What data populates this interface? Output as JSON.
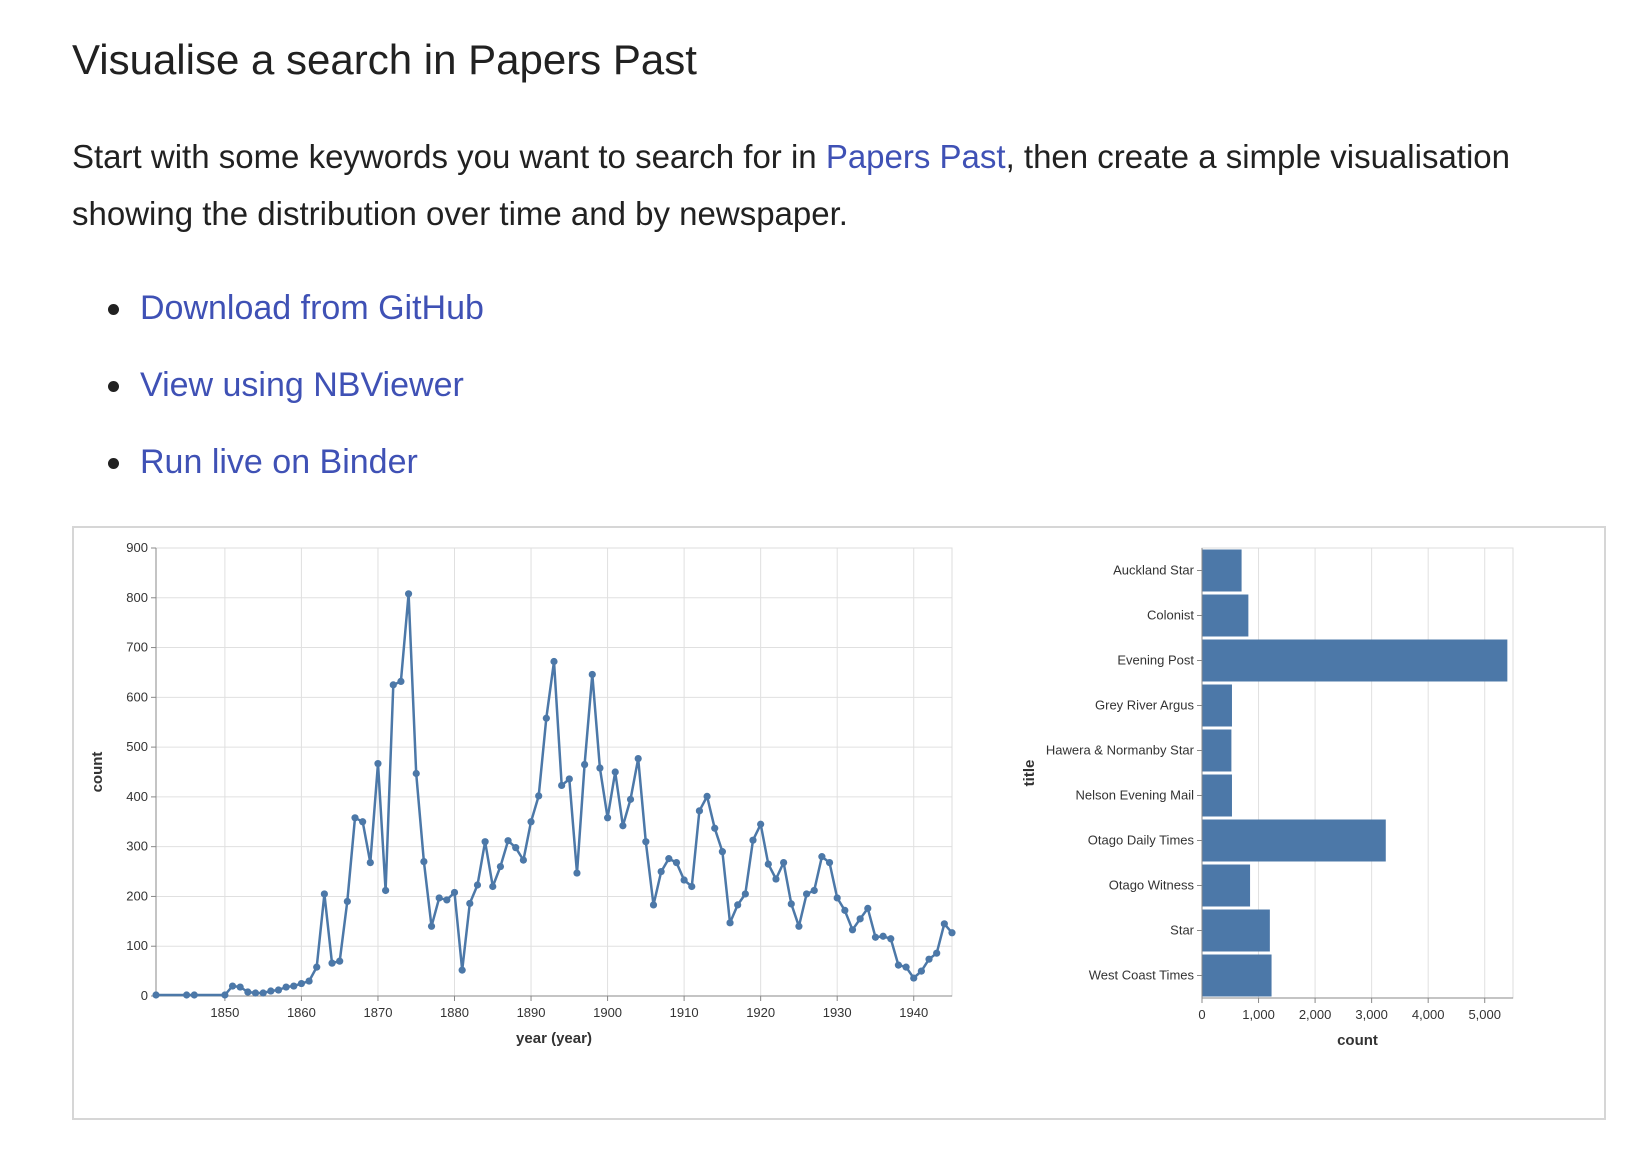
{
  "title": "Visualise a search in Papers Past",
  "intro": {
    "before": "Start with some keywords you want to search for in ",
    "link_text": "Papers Past",
    "after": ", then create a simple visualisation showing the distribution over time and by newspaper."
  },
  "links": [
    {
      "label": "Download from GitHub"
    },
    {
      "label": "View using NBViewer"
    },
    {
      "label": "Run live on Binder"
    }
  ],
  "colors": {
    "link": "#3f51b5",
    "mark": "#4c78a8",
    "grid": "#e0e0e0",
    "text": "#212121"
  },
  "chart_data": [
    {
      "type": "line",
      "xlabel": "year (year)",
      "ylabel": "count",
      "xlim": [
        1841,
        1945
      ],
      "ylim": [
        0,
        900
      ],
      "x_ticks": [
        1850,
        1860,
        1870,
        1880,
        1890,
        1900,
        1910,
        1920,
        1930,
        1940
      ],
      "y_ticks": [
        0,
        100,
        200,
        300,
        400,
        500,
        600,
        700,
        800,
        900
      ],
      "grid": true,
      "points": [
        [
          1841,
          2
        ],
        [
          1845,
          2
        ],
        [
          1846,
          2
        ],
        [
          1850,
          2
        ],
        [
          1851,
          20
        ],
        [
          1852,
          18
        ],
        [
          1853,
          8
        ],
        [
          1854,
          6
        ],
        [
          1855,
          6
        ],
        [
          1856,
          10
        ],
        [
          1857,
          12
        ],
        [
          1858,
          18
        ],
        [
          1859,
          20
        ],
        [
          1860,
          25
        ],
        [
          1861,
          30
        ],
        [
          1862,
          58
        ],
        [
          1863,
          205
        ],
        [
          1864,
          66
        ],
        [
          1865,
          70
        ],
        [
          1866,
          190
        ],
        [
          1867,
          358
        ],
        [
          1868,
          350
        ],
        [
          1869,
          268
        ],
        [
          1870,
          467
        ],
        [
          1871,
          212
        ],
        [
          1872,
          625
        ],
        [
          1873,
          632
        ],
        [
          1874,
          808
        ],
        [
          1875,
          447
        ],
        [
          1876,
          270
        ],
        [
          1877,
          140
        ],
        [
          1878,
          197
        ],
        [
          1879,
          193
        ],
        [
          1880,
          208
        ],
        [
          1881,
          52
        ],
        [
          1882,
          186
        ],
        [
          1883,
          223
        ],
        [
          1884,
          310
        ],
        [
          1885,
          220
        ],
        [
          1886,
          260
        ],
        [
          1887,
          312
        ],
        [
          1888,
          298
        ],
        [
          1889,
          273
        ],
        [
          1890,
          350
        ],
        [
          1891,
          402
        ],
        [
          1892,
          558
        ],
        [
          1893,
          672
        ],
        [
          1894,
          423
        ],
        [
          1895,
          436
        ],
        [
          1896,
          247
        ],
        [
          1897,
          465
        ],
        [
          1898,
          646
        ],
        [
          1899,
          458
        ],
        [
          1900,
          358
        ],
        [
          1901,
          450
        ],
        [
          1902,
          342
        ],
        [
          1903,
          395
        ],
        [
          1904,
          477
        ],
        [
          1905,
          310
        ],
        [
          1906,
          183
        ],
        [
          1907,
          250
        ],
        [
          1908,
          276
        ],
        [
          1909,
          268
        ],
        [
          1910,
          233
        ],
        [
          1911,
          220
        ],
        [
          1912,
          372
        ],
        [
          1913,
          401
        ],
        [
          1914,
          337
        ],
        [
          1915,
          290
        ],
        [
          1916,
          147
        ],
        [
          1917,
          183
        ],
        [
          1918,
          205
        ],
        [
          1919,
          313
        ],
        [
          1920,
          345
        ],
        [
          1921,
          265
        ],
        [
          1922,
          235
        ],
        [
          1923,
          268
        ],
        [
          1924,
          185
        ],
        [
          1925,
          140
        ],
        [
          1926,
          205
        ],
        [
          1927,
          212
        ],
        [
          1928,
          280
        ],
        [
          1929,
          268
        ],
        [
          1930,
          197
        ],
        [
          1931,
          172
        ],
        [
          1932,
          133
        ],
        [
          1933,
          155
        ],
        [
          1934,
          176
        ],
        [
          1935,
          118
        ],
        [
          1936,
          120
        ],
        [
          1937,
          115
        ],
        [
          1938,
          62
        ],
        [
          1939,
          58
        ],
        [
          1940,
          36
        ],
        [
          1941,
          50
        ],
        [
          1942,
          74
        ],
        [
          1943,
          86
        ],
        [
          1944,
          145
        ],
        [
          1945,
          127
        ]
      ]
    },
    {
      "type": "bar",
      "orientation": "horizontal",
      "ylabel": "title",
      "xlabel": "count",
      "xlim": [
        0,
        5500
      ],
      "x_ticks": [
        0,
        1000,
        2000,
        3000,
        4000,
        5000
      ],
      "x_tick_labels": [
        "0",
        "1,000",
        "2,000",
        "3,000",
        "4,000",
        "5,000"
      ],
      "grid": true,
      "categories": [
        "Auckland Star",
        "Colonist",
        "Evening Post",
        "Grey River Argus",
        "Hawera & Normanby Star",
        "Nelson Evening Mail",
        "Otago Daily Times",
        "Otago Witness",
        "Star",
        "West Coast Times"
      ],
      "values": [
        700,
        820,
        5400,
        530,
        520,
        530,
        3250,
        850,
        1200,
        1230
      ]
    }
  ]
}
